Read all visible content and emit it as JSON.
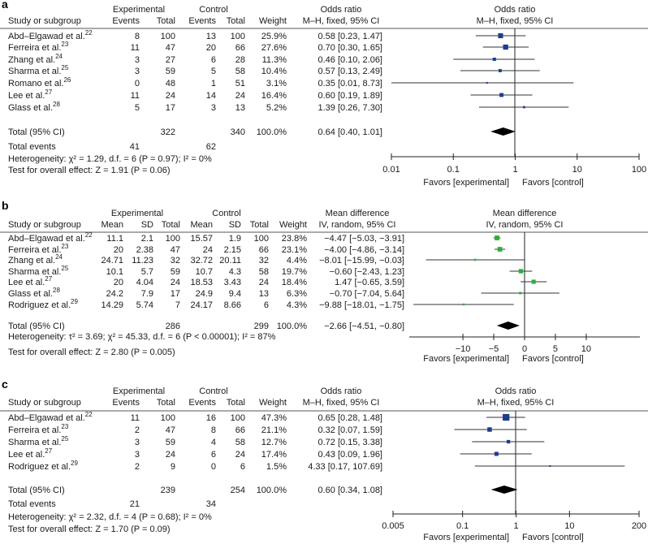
{
  "chart_data": [
    {
      "type": "forest",
      "panel_label": "a",
      "measure": "or",
      "group_headers": [
        "Experimental",
        "Control"
      ],
      "col_headers": [
        "Study or subgroup",
        "Events",
        "Total",
        "Events",
        "Total",
        "Weight"
      ],
      "effect_header": [
        "Odds ratio",
        "M–H, fixed, 95% CI"
      ],
      "plot_header": [
        "Odds ratio",
        "M–H, fixed, 95% CI"
      ],
      "marker_color": "#1f3d8f",
      "studies": [
        {
          "name": "Abd–Elgawad et al.",
          "ref": "22",
          "cells": [
            "8",
            "100",
            "13",
            "100"
          ],
          "weight": "25.9%",
          "w": 25.9,
          "ci_text": "0.58 [0.23, 1.47]",
          "est": 0.58,
          "lo": 0.23,
          "hi": 1.47
        },
        {
          "name": "Ferreira et al.",
          "ref": "23",
          "cells": [
            "11",
            "47",
            "20",
            "66"
          ],
          "weight": "27.6%",
          "w": 27.6,
          "ci_text": "0.70 [0.30, 1.65]",
          "est": 0.7,
          "lo": 0.3,
          "hi": 1.65
        },
        {
          "name": "Zhang et al.",
          "ref": "24",
          "cells": [
            "3",
            "27",
            "6",
            "28"
          ],
          "weight": "11.3%",
          "w": 11.3,
          "ci_text": "0.46 [0.10, 2.06]",
          "est": 0.46,
          "lo": 0.1,
          "hi": 2.06
        },
        {
          "name": "Sharma et al.",
          "ref": "25",
          "cells": [
            "3",
            "59",
            "5",
            "58"
          ],
          "weight": "10.4%",
          "w": 10.4,
          "ci_text": "0.57 [0.13, 2.49]",
          "est": 0.57,
          "lo": 0.13,
          "hi": 2.49
        },
        {
          "name": "Romano et al.",
          "ref": "26",
          "cells": [
            "0",
            "48",
            "1",
            "51"
          ],
          "weight": "3.1%",
          "w": 3.1,
          "ci_text": "0.35 [0.01, 8.73]",
          "est": 0.35,
          "lo": 0.01,
          "hi": 8.73
        },
        {
          "name": "Lee et al.",
          "ref": "27",
          "cells": [
            "11",
            "24",
            "14",
            "24"
          ],
          "weight": "16.4%",
          "w": 16.4,
          "ci_text": "0.60 [0.19, 1.89]",
          "est": 0.6,
          "lo": 0.19,
          "hi": 1.89
        },
        {
          "name": "Glass et al.",
          "ref": "28",
          "cells": [
            "5",
            "17",
            "3",
            "13"
          ],
          "weight": "5.2%",
          "w": 5.2,
          "ci_text": "1.39 [0.26, 7.30]",
          "est": 1.39,
          "lo": 0.26,
          "hi": 7.3
        }
      ],
      "total": {
        "name": "Total (95% CI)",
        "cells": [
          "",
          "322",
          "",
          "340"
        ],
        "weight": "100.0%",
        "ci_text": "0.64 [0.40, 1.01]",
        "est": 0.64,
        "lo": 0.4,
        "hi": 1.01
      },
      "total_events": {
        "label": "Total events",
        "cells": [
          "41",
          "",
          "62",
          ""
        ]
      },
      "heterogeneity": "Heterogeneity: χ² = 1.29, d.f. = 6 (P = 0.97); I² = 0%",
      "overall_effect": "Test for overall effect: Z = 1.91 (P = 0.06)",
      "axis": {
        "scale": "log",
        "min": 0.01,
        "max": 100,
        "null": 1,
        "ticks": [
          0.01,
          0.1,
          1,
          10,
          100
        ],
        "tick_labels": [
          "0.01",
          "0.1",
          "1",
          "10",
          "100"
        ]
      },
      "favors": [
        "Favors [experimental]",
        "Favors [control]"
      ]
    },
    {
      "type": "forest",
      "panel_label": "b",
      "measure": "md",
      "group_headers": [
        "Experimental",
        "Control"
      ],
      "col_headers": [
        "Study or subgroup",
        "Mean",
        "SD",
        "Total",
        "Mean",
        "SD",
        "Total",
        "Weight"
      ],
      "effect_header": [
        "Mean difference",
        "IV, random, 95% CI"
      ],
      "plot_header": [
        "Mean difference",
        "IV, random, 95% CI"
      ],
      "marker_color": "#2fae3c",
      "studies": [
        {
          "name": "Abd–Elgawad et al.",
          "ref": "22",
          "cells": [
            "11.1",
            "2.1",
            "100",
            "15.57",
            "1.9",
            "100"
          ],
          "weight": "23.8%",
          "w": 23.8,
          "ci_text": "−4.47 [−5.03, −3.91]",
          "est": -4.47,
          "lo": -5.03,
          "hi": -3.91
        },
        {
          "name": "Ferreira et al.",
          "ref": "23",
          "cells": [
            "20",
            "2.38",
            "47",
            "24",
            "2.15",
            "66"
          ],
          "weight": "23.1%",
          "w": 23.1,
          "ci_text": "−4.00 [−4.86, −3.14]",
          "est": -4.0,
          "lo": -4.86,
          "hi": -3.14
        },
        {
          "name": "Zhang et al.",
          "ref": "24",
          "cells": [
            "24.71",
            "11.23",
            "32",
            "32.72",
            "20.11",
            "32"
          ],
          "weight": "4.4%",
          "w": 4.4,
          "ci_text": "−8.01 [−15.99, −0.03]",
          "est": -8.01,
          "lo": -15.99,
          "hi": -0.03
        },
        {
          "name": "Sharma et al.",
          "ref": "25",
          "cells": [
            "10.1",
            "5.7",
            "59",
            "10.7",
            "4.3",
            "58"
          ],
          "weight": "19.7%",
          "w": 19.7,
          "ci_text": "−0.60 [−2.43, 1.23]",
          "est": -0.6,
          "lo": -2.43,
          "hi": 1.23
        },
        {
          "name": "Lee et al.",
          "ref": "27",
          "cells": [
            "20",
            "4.04",
            "24",
            "18.53",
            "3.43",
            "24"
          ],
          "weight": "18.4%",
          "w": 18.4,
          "ci_text": "1.47 [−0.65, 3.59]",
          "est": 1.47,
          "lo": -0.65,
          "hi": 3.59
        },
        {
          "name": "Glass et al.",
          "ref": "28",
          "cells": [
            "24.2",
            "7.9",
            "17",
            "24.9",
            "9.4",
            "13"
          ],
          "weight": "6.3%",
          "w": 6.3,
          "ci_text": "−0.70 [−7.04, 5.64]",
          "est": -0.7,
          "lo": -7.04,
          "hi": 5.64
        },
        {
          "name": "Rodriguez et al.",
          "ref": "29",
          "cells": [
            "14.29",
            "5.74",
            "7",
            "24.17",
            "8.66",
            "6"
          ],
          "weight": "4.3%",
          "w": 4.3,
          "ci_text": "−9.88 [−18.01, −1.75]",
          "est": -9.88,
          "lo": -18.01,
          "hi": -1.75
        }
      ],
      "total": {
        "name": "Total (95% CI)",
        "cells": [
          "",
          "",
          "286",
          "",
          "",
          "299"
        ],
        "weight": "100.0%",
        "ci_text": "−2.66 [−4.51, −0.80]",
        "est": -2.66,
        "lo": -4.51,
        "hi": -0.8
      },
      "heterogeneity": "Heterogeneity: τ² = 3.69; χ² = 45.33, d.f. = 6 (P < 0.00001); I² = 87%",
      "overall_effect": "Test for overall effect: Z = 2.80 (P = 0.005)",
      "axis": {
        "scale": "linear",
        "min": -18.7,
        "max": 18.7,
        "null": 0,
        "ticks": [
          -10,
          -5,
          0,
          5,
          10
        ],
        "tick_labels": [
          "−10",
          "−5",
          "0",
          "5",
          "10"
        ]
      },
      "favors": [
        "Favors [experimental]",
        "Favors [control]"
      ]
    },
    {
      "type": "forest",
      "panel_label": "c",
      "measure": "or",
      "group_headers": [
        "Experimental",
        "Control"
      ],
      "col_headers": [
        "Study or subgroup",
        "Events",
        "Total",
        "Events",
        "Total",
        "Weight"
      ],
      "effect_header": [
        "Odds ratio",
        "M–H, fixed, 95% CI"
      ],
      "plot_header": [
        "Odds ratio",
        "M–H, fixed, 95% CI"
      ],
      "marker_color": "#1f3d8f",
      "studies": [
        {
          "name": "Abd–Elgawad et al.",
          "ref": "22",
          "cells": [
            "11",
            "100",
            "16",
            "100"
          ],
          "weight": "47.3%",
          "w": 47.3,
          "ci_text": "0.65 [0.28, 1.48]",
          "est": 0.65,
          "lo": 0.28,
          "hi": 1.48
        },
        {
          "name": "Ferreira et al.",
          "ref": "23",
          "cells": [
            "2",
            "47",
            "8",
            "66"
          ],
          "weight": "21.1%",
          "w": 21.1,
          "ci_text": "0.32 [0.07, 1.59]",
          "est": 0.32,
          "lo": 0.07,
          "hi": 1.59
        },
        {
          "name": "Sharma et al.",
          "ref": "25",
          "cells": [
            "3",
            "59",
            "4",
            "58"
          ],
          "weight": "12.7%",
          "w": 12.7,
          "ci_text": "0.72 [0.15, 3.38]",
          "est": 0.72,
          "lo": 0.15,
          "hi": 3.38
        },
        {
          "name": "Lee et al.",
          "ref": "27",
          "cells": [
            "3",
            "24",
            "6",
            "24"
          ],
          "weight": "17.4%",
          "w": 17.4,
          "ci_text": "0.43 [0.09, 1.96]",
          "est": 0.43,
          "lo": 0.09,
          "hi": 1.96
        },
        {
          "name": "Rodriguez et al.",
          "ref": "29",
          "cells": [
            "2",
            "9",
            "0",
            "6"
          ],
          "weight": "1.5%",
          "w": 1.5,
          "ci_text": "4.33 [0.17, 107.69]",
          "est": 4.33,
          "lo": 0.17,
          "hi": 107.69
        }
      ],
      "total": {
        "name": "Total (95% CI)",
        "cells": [
          "",
          "239",
          "",
          "254"
        ],
        "weight": "100.0%",
        "ci_text": "0.60 [0.34, 1.08]",
        "est": 0.6,
        "lo": 0.34,
        "hi": 1.08
      },
      "total_events": {
        "label": "Total events",
        "cells": [
          "21",
          "",
          "34",
          ""
        ]
      },
      "heterogeneity": "Heterogeneity: χ² = 2.32, d.f. = 4 (P = 0.68); I² = 0%",
      "overall_effect": "Test for overall effect: Z = 1.70 (P = 0.09)",
      "axis": {
        "scale": "log",
        "min": 0.005,
        "max": 200,
        "null": 1,
        "ticks": [
          0.005,
          0.1,
          1,
          10,
          200
        ],
        "tick_labels": [
          "0.005",
          "0.1",
          "1",
          "10",
          "200"
        ]
      },
      "favors": [
        "Favors [experimental]",
        "Favors [control]"
      ]
    }
  ]
}
